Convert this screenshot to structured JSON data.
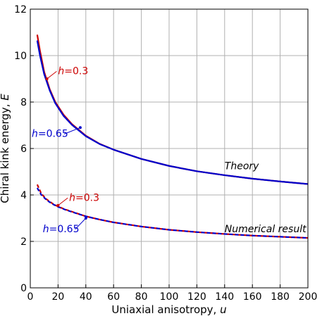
{
  "chart_data": {
    "type": "line",
    "xlabel": "Uniaxial anisotropy, ",
    "xlabel_var": "u",
    "ylabel": "Chiral kink energy, ",
    "ylabel_var": "E",
    "xlim": [
      0,
      200
    ],
    "ylim": [
      0,
      12
    ],
    "x_ticks": [
      0,
      20,
      40,
      60,
      80,
      100,
      120,
      140,
      160,
      180,
      200
    ],
    "y_ticks": [
      0,
      2,
      4,
      6,
      8,
      10,
      12
    ],
    "grid": true,
    "colors": {
      "red": "#cc0000",
      "blue": "#0000cc",
      "grid": "#b0b0b0"
    },
    "series": [
      {
        "group": "Theory",
        "param": "h=0.3",
        "color": "#cc0000",
        "style": "solid",
        "x": [
          5,
          7,
          10,
          14,
          18,
          24,
          30,
          40,
          50,
          60,
          80,
          100,
          120,
          140,
          160,
          180,
          200
        ],
        "y": [
          10.9,
          10.2,
          9.3,
          8.55,
          8.0,
          7.45,
          7.05,
          6.55,
          6.2,
          5.95,
          5.55,
          5.25,
          5.02,
          4.85,
          4.7,
          4.58,
          4.47
        ]
      },
      {
        "group": "Theory",
        "param": "h=0.65",
        "color": "#0000cc",
        "style": "solid",
        "x": [
          5,
          7,
          10,
          14,
          18,
          24,
          30,
          40,
          50,
          60,
          80,
          100,
          120,
          140,
          160,
          180,
          200
        ],
        "y": [
          10.65,
          10.0,
          9.2,
          8.5,
          7.95,
          7.4,
          7.02,
          6.53,
          6.19,
          5.95,
          5.55,
          5.25,
          5.02,
          4.85,
          4.7,
          4.58,
          4.47
        ]
      },
      {
        "group": "Numerical result",
        "param": "h=0.3",
        "color": "#cc0000",
        "style": "dashed",
        "x": [
          5,
          8,
          12,
          16,
          20,
          25,
          30,
          40,
          50,
          60,
          80,
          100,
          120,
          140,
          160,
          180,
          200
        ],
        "y": [
          4.45,
          4.05,
          3.8,
          3.63,
          3.5,
          3.38,
          3.28,
          3.08,
          2.94,
          2.82,
          2.64,
          2.5,
          2.4,
          2.32,
          2.25,
          2.2,
          2.15
        ]
      },
      {
        "group": "Numerical result",
        "param": "h=0.65",
        "color": "#0000cc",
        "style": "dashed",
        "x": [
          5,
          8,
          12,
          16,
          20,
          25,
          30,
          40,
          50,
          60,
          80,
          100,
          120,
          140,
          160,
          180,
          200
        ],
        "y": [
          4.3,
          4.0,
          3.77,
          3.61,
          3.49,
          3.37,
          3.27,
          3.08,
          2.94,
          2.82,
          2.64,
          2.5,
          2.4,
          2.32,
          2.25,
          2.2,
          2.15
        ]
      }
    ],
    "annotations": [
      {
        "text": "Theory",
        "color": "#000000",
        "italic": true,
        "at": [
          140,
          5.1
        ]
      },
      {
        "text": "Numerical result",
        "color": "#000000",
        "italic": true,
        "at": [
          140,
          2.4
        ]
      },
      {
        "var": "h",
        "text": "=0.3",
        "color": "#cc0000",
        "at": [
          20,
          9.2
        ],
        "target": [
          12,
          9.0
        ]
      },
      {
        "var": "h",
        "text": "=0.65",
        "color": "#0000cc",
        "at": [
          1,
          6.5
        ],
        "target": [
          36,
          6.9
        ]
      },
      {
        "var": "h",
        "text": "=0.3",
        "color": "#cc0000",
        "at": [
          28,
          3.75
        ],
        "target": [
          20,
          3.55
        ]
      },
      {
        "var": "h",
        "text": "=0.65",
        "color": "#0000cc",
        "at": [
          9,
          2.4
        ],
        "target": [
          40,
          3.0
        ]
      }
    ]
  }
}
